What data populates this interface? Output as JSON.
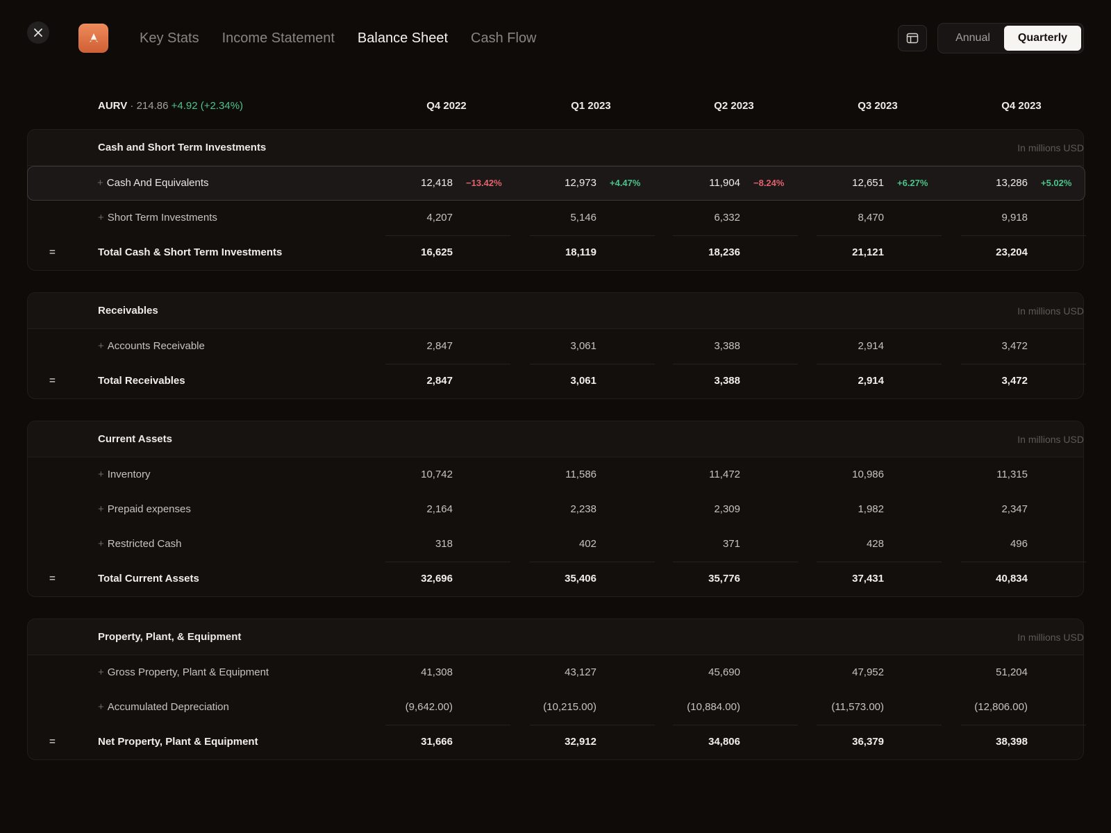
{
  "header": {
    "tabs": [
      {
        "label": "Key Stats",
        "active": false
      },
      {
        "label": "Income Statement",
        "active": false
      },
      {
        "label": "Balance Sheet",
        "active": true
      },
      {
        "label": "Cash Flow",
        "active": false
      }
    ],
    "period_toggle": {
      "annual_label": "Annual",
      "quarterly_label": "Quarterly",
      "selected": "Quarterly"
    },
    "icons": {
      "close": "close-icon",
      "logo": "logo-icon",
      "layout": "layout-icon"
    }
  },
  "ticker": {
    "symbol": "AURV",
    "separator": " · ",
    "price": "214.86",
    "change": "+4.92 (+2.34%)"
  },
  "columns": [
    "Q4 2022",
    "Q1 2023",
    "Q2 2023",
    "Q3 2023",
    "Q4 2023"
  ],
  "unit_label": "In millions USD",
  "colors": {
    "accent": "#e2733f",
    "positive": "#4cc38a",
    "negative": "#e2636b",
    "background": "#0e0b09"
  },
  "sections": [
    {
      "title": "Cash and Short Term Investments",
      "rows": [
        {
          "label": "Cash And Equivalents",
          "type": "item",
          "highlighted": true,
          "values": [
            "12,418",
            "12,973",
            "11,904",
            "12,651",
            "13,286"
          ],
          "changes": [
            "−13.42%",
            "+4.47%",
            "−8.24%",
            "+6.27%",
            "+5.02%"
          ]
        },
        {
          "label": "Short Term Investments",
          "type": "item",
          "values": [
            "4,207",
            "5,146",
            "6,332",
            "8,470",
            "9,918"
          ]
        },
        {
          "label": "Total Cash & Short Term Investments",
          "type": "total",
          "symbol": "=",
          "values": [
            "16,625",
            "18,119",
            "18,236",
            "21,121",
            "23,204"
          ]
        }
      ]
    },
    {
      "title": "Receivables",
      "rows": [
        {
          "label": "Accounts Receivable",
          "type": "item",
          "values": [
            "2,847",
            "3,061",
            "3,388",
            "2,914",
            "3,472"
          ]
        },
        {
          "label": "Total Receivables",
          "type": "total",
          "symbol": "=",
          "values": [
            "2,847",
            "3,061",
            "3,388",
            "2,914",
            "3,472"
          ]
        }
      ]
    },
    {
      "title": "Current Assets",
      "rows": [
        {
          "label": "Inventory",
          "type": "item",
          "values": [
            "10,742",
            "11,586",
            "11,472",
            "10,986",
            "11,315"
          ]
        },
        {
          "label": "Prepaid expenses",
          "type": "item",
          "values": [
            "2,164",
            "2,238",
            "2,309",
            "1,982",
            "2,347"
          ]
        },
        {
          "label": "Restricted Cash",
          "type": "item",
          "values": [
            "318",
            "402",
            "371",
            "428",
            "496"
          ]
        },
        {
          "label": "Total Current Assets",
          "type": "total",
          "symbol": "=",
          "values": [
            "32,696",
            "35,406",
            "35,776",
            "37,431",
            "40,834"
          ]
        }
      ]
    },
    {
      "title": "Property, Plant, & Equipment",
      "rows": [
        {
          "label": "Gross Property, Plant & Equipment",
          "type": "item",
          "values": [
            "41,308",
            "43,127",
            "45,690",
            "47,952",
            "51,204"
          ]
        },
        {
          "label": "Accumulated Depreciation",
          "type": "item",
          "values": [
            "(9,642.00)",
            "(10,215.00)",
            "(10,884.00)",
            "(11,573.00)",
            "(12,806.00)"
          ]
        },
        {
          "label": "Net Property, Plant & Equipment",
          "type": "total",
          "symbol": "=",
          "values": [
            "31,666",
            "32,912",
            "34,806",
            "36,379",
            "38,398"
          ]
        }
      ]
    }
  ]
}
